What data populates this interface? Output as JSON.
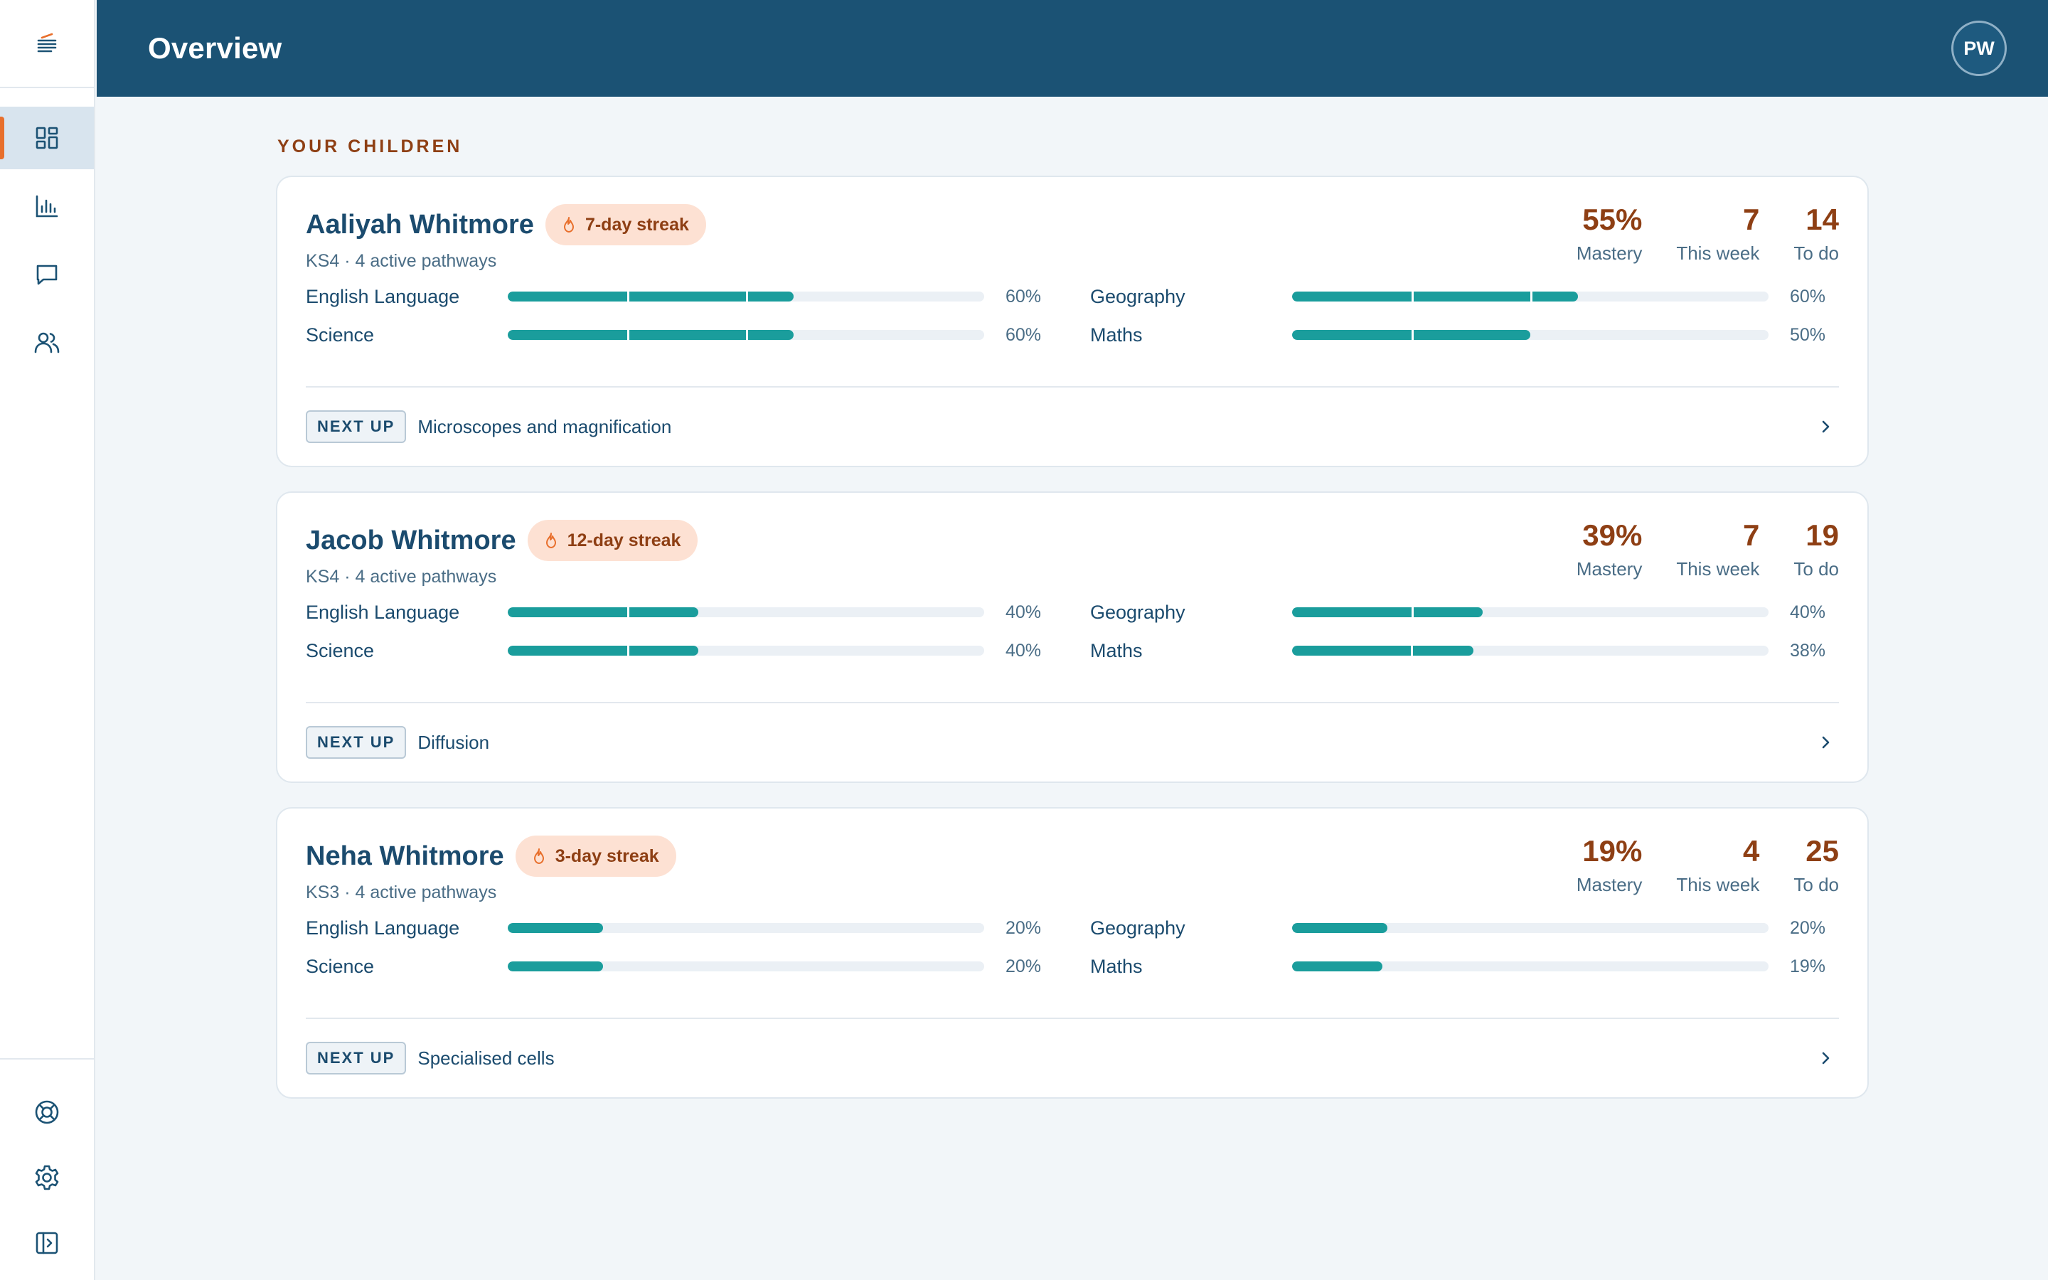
{
  "header": {
    "title": "Overview",
    "avatar_initials": "PW"
  },
  "sidebar": {
    "logo_icon": "menu-logo-icon",
    "nav": [
      {
        "name": "dashboard",
        "icon": "dashboard-grid-icon",
        "active": true
      },
      {
        "name": "reports",
        "icon": "bar-chart-icon",
        "active": false
      },
      {
        "name": "messages",
        "icon": "chat-bubble-icon",
        "active": false
      },
      {
        "name": "family",
        "icon": "users-icon",
        "active": false
      }
    ],
    "bottom": [
      {
        "name": "help",
        "icon": "lifebuoy-icon"
      },
      {
        "name": "settings",
        "icon": "gear-icon"
      },
      {
        "name": "collapse",
        "icon": "sidebar-collapse-icon"
      }
    ]
  },
  "main": {
    "section_heading": "YOUR CHILDREN",
    "next_up_label": "NEXT UP",
    "children": [
      {
        "name": "Aaliyah Whitmore",
        "streak": "7-day streak",
        "meta": "KS4 · 4 active pathways",
        "stats": [
          {
            "value": "55%",
            "label": "Mastery"
          },
          {
            "value": "7",
            "label": "This week"
          },
          {
            "value": "14",
            "label": "To do"
          }
        ],
        "subjects": [
          {
            "name": "English Language",
            "pct_label": "60%",
            "progress": 0.6
          },
          {
            "name": "Geography",
            "pct_label": "60%",
            "progress": 0.6
          },
          {
            "name": "Science",
            "pct_label": "60%",
            "progress": 0.6
          },
          {
            "name": "Maths",
            "pct_label": "50%",
            "progress": 0.5
          }
        ],
        "next_up": "Microscopes and magnification"
      },
      {
        "name": "Jacob Whitmore",
        "streak": "12-day streak",
        "meta": "KS4 · 4 active pathways",
        "stats": [
          {
            "value": "39%",
            "label": "Mastery"
          },
          {
            "value": "7",
            "label": "This week"
          },
          {
            "value": "19",
            "label": "To do"
          }
        ],
        "subjects": [
          {
            "name": "English Language",
            "pct_label": "40%",
            "progress": 0.4
          },
          {
            "name": "Geography",
            "pct_label": "40%",
            "progress": 0.4
          },
          {
            "name": "Science",
            "pct_label": "40%",
            "progress": 0.4
          },
          {
            "name": "Maths",
            "pct_label": "38%",
            "progress": 0.38
          }
        ],
        "next_up": "Diffusion"
      },
      {
        "name": "Neha Whitmore",
        "streak": "3-day streak",
        "meta": "KS3 · 4 active pathways",
        "stats": [
          {
            "value": "19%",
            "label": "Mastery"
          },
          {
            "value": "4",
            "label": "This week"
          },
          {
            "value": "25",
            "label": "To do"
          }
        ],
        "subjects": [
          {
            "name": "English Language",
            "pct_label": "20%",
            "progress": 0.2
          },
          {
            "name": "Geography",
            "pct_label": "20%",
            "progress": 0.2
          },
          {
            "name": "Science",
            "pct_label": "20%",
            "progress": 0.2
          },
          {
            "name": "Maths",
            "pct_label": "19%",
            "progress": 0.19
          }
        ],
        "next_up": "Specialised cells"
      }
    ]
  },
  "colors": {
    "header_bg": "#1b5274",
    "accent_orange": "#e86f2c",
    "stat_brown": "#8e3f14",
    "progress_teal": "#1a9d9c",
    "streak_bg": "#fde1d3"
  }
}
